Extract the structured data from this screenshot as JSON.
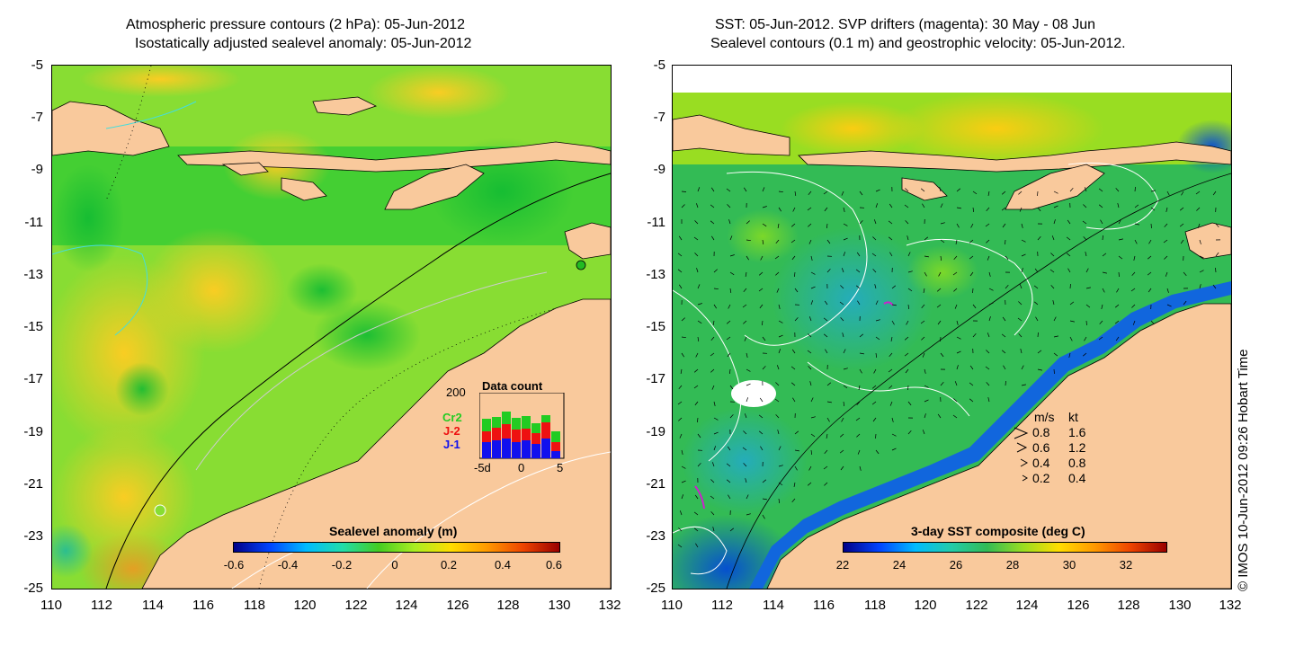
{
  "left_panel": {
    "title_line1": "Atmospheric pressure contours (2 hPa): 05-Jun-2012",
    "title_line2": "Isostatically adjusted sealevel anomaly: 05-Jun-2012",
    "colorbar_label": "Sealevel anomaly (m)",
    "colorbar_ticks": [
      "-0.6",
      "-0.4",
      "-0.2",
      "0",
      "0.2",
      "0.4",
      "0.6"
    ],
    "data_count": {
      "title": "Data count",
      "y_max": "200",
      "series": [
        {
          "name": "Cr2",
          "color": "#22cc22"
        },
        {
          "name": "J-2",
          "color": "#ee1111"
        },
        {
          "name": "J-1",
          "color": "#1111ee"
        }
      ],
      "x_ticks": [
        "-5d",
        "0",
        "5"
      ]
    }
  },
  "right_panel": {
    "title_line1": "SST: 05-Jun-2012. SVP drifters (magenta): 30 May - 08 Jun",
    "title_line2": "Sealevel contours (0.1 m) and geostrophic velocity: 05-Jun-2012.",
    "colorbar_label": "3-day SST composite (deg C)",
    "colorbar_ticks": [
      "22",
      "24",
      "26",
      "28",
      "30",
      "32"
    ],
    "velocity_legend": {
      "header_ms": "m/s",
      "header_kt": "kt",
      "rows": [
        {
          "ms": "0.8",
          "kt": "1.6"
        },
        {
          "ms": "0.6",
          "kt": "1.2"
        },
        {
          "ms": "0.4",
          "kt": "0.8"
        },
        {
          "ms": "0.2",
          "kt": "0.4"
        }
      ]
    }
  },
  "axes": {
    "y_ticks": [
      "-5",
      "-7",
      "-9",
      "-11",
      "-13",
      "-15",
      "-17",
      "-19",
      "-21",
      "-23",
      "-25"
    ],
    "x_ticks": [
      "110",
      "112",
      "114",
      "116",
      "118",
      "120",
      "122",
      "124",
      "126",
      "128",
      "130",
      "132"
    ]
  },
  "credit": "© IMOS 10-Jun-2012 09:26 Hobart Time",
  "colors": {
    "land": "#f9c99c",
    "sla_base": "#66dd22",
    "sst_base": "#33bb44"
  }
}
